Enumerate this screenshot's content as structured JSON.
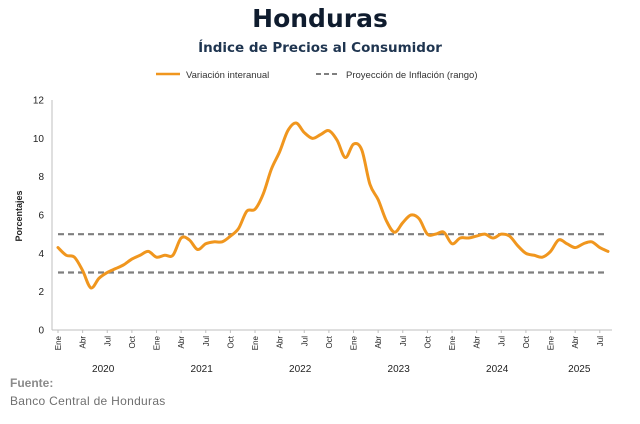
{
  "header": {
    "title": "Honduras",
    "subtitle": "Índice de Precios al Consumidor"
  },
  "footer": {
    "source_label": "Fuente:",
    "source_text": "Banco Central de Honduras"
  },
  "colors": {
    "series": "#f0961e",
    "band": "#7f7f7f",
    "title": "#0f1c2e",
    "subtitle": "#1f3550"
  },
  "chart_data": {
    "type": "line",
    "title": "Honduras",
    "subtitle": "Índice de Precios al Consumidor",
    "ylabel": "Porcentajes",
    "xlabel": "",
    "ylim": [
      0,
      12
    ],
    "yticks": [
      0,
      2,
      4,
      6,
      8,
      10,
      12
    ],
    "grid": false,
    "legend_position": "top",
    "month_labels": [
      "Ene",
      "Abr",
      "Jul",
      "Oct"
    ],
    "x_start": "2020-01",
    "years": [
      "2020",
      "2021",
      "2022",
      "2023",
      "2024",
      "2025"
    ],
    "series": [
      {
        "name": "Variación interanual",
        "style": "solid",
        "x": [
          "2020-01",
          "2020-02",
          "2020-03",
          "2020-04",
          "2020-05",
          "2020-06",
          "2020-07",
          "2020-08",
          "2020-09",
          "2020-10",
          "2020-11",
          "2020-12",
          "2021-01",
          "2021-02",
          "2021-03",
          "2021-04",
          "2021-05",
          "2021-06",
          "2021-07",
          "2021-08",
          "2021-09",
          "2021-10",
          "2021-11",
          "2021-12",
          "2022-01",
          "2022-02",
          "2022-03",
          "2022-04",
          "2022-05",
          "2022-06",
          "2022-07",
          "2022-08",
          "2022-09",
          "2022-10",
          "2022-11",
          "2022-12",
          "2023-01",
          "2023-02",
          "2023-03",
          "2023-04",
          "2023-05",
          "2023-06",
          "2023-07",
          "2023-08",
          "2023-09",
          "2023-10",
          "2023-11",
          "2023-12",
          "2024-01",
          "2024-02",
          "2024-03",
          "2024-04",
          "2024-05",
          "2024-06",
          "2024-07",
          "2024-08",
          "2024-09",
          "2024-10",
          "2024-11",
          "2024-12",
          "2025-01",
          "2025-02",
          "2025-03",
          "2025-04",
          "2025-05",
          "2025-06",
          "2025-07",
          "2025-08"
        ],
        "values": [
          4.3,
          3.9,
          3.8,
          3.1,
          2.2,
          2.7,
          3.0,
          3.2,
          3.4,
          3.7,
          3.9,
          4.1,
          3.8,
          3.9,
          3.9,
          4.8,
          4.7,
          4.2,
          4.5,
          4.6,
          4.6,
          4.9,
          5.3,
          6.2,
          6.3,
          7.1,
          8.4,
          9.3,
          10.4,
          10.8,
          10.3,
          10.0,
          10.2,
          10.4,
          9.9,
          9.0,
          9.7,
          9.4,
          7.6,
          6.8,
          5.7,
          5.1,
          5.6,
          6.0,
          5.8,
          5.0,
          5.0,
          5.1,
          4.5,
          4.8,
          4.8,
          4.9,
          5.0,
          4.8,
          5.0,
          4.9,
          4.4,
          4.0,
          3.9,
          3.8,
          4.1,
          4.7,
          4.5,
          4.3,
          4.5,
          4.6,
          4.3,
          4.1
        ]
      },
      {
        "name": "Proyección de Inflación (rango)",
        "style": "dashed",
        "upper": 5,
        "lower": 3
      }
    ]
  }
}
